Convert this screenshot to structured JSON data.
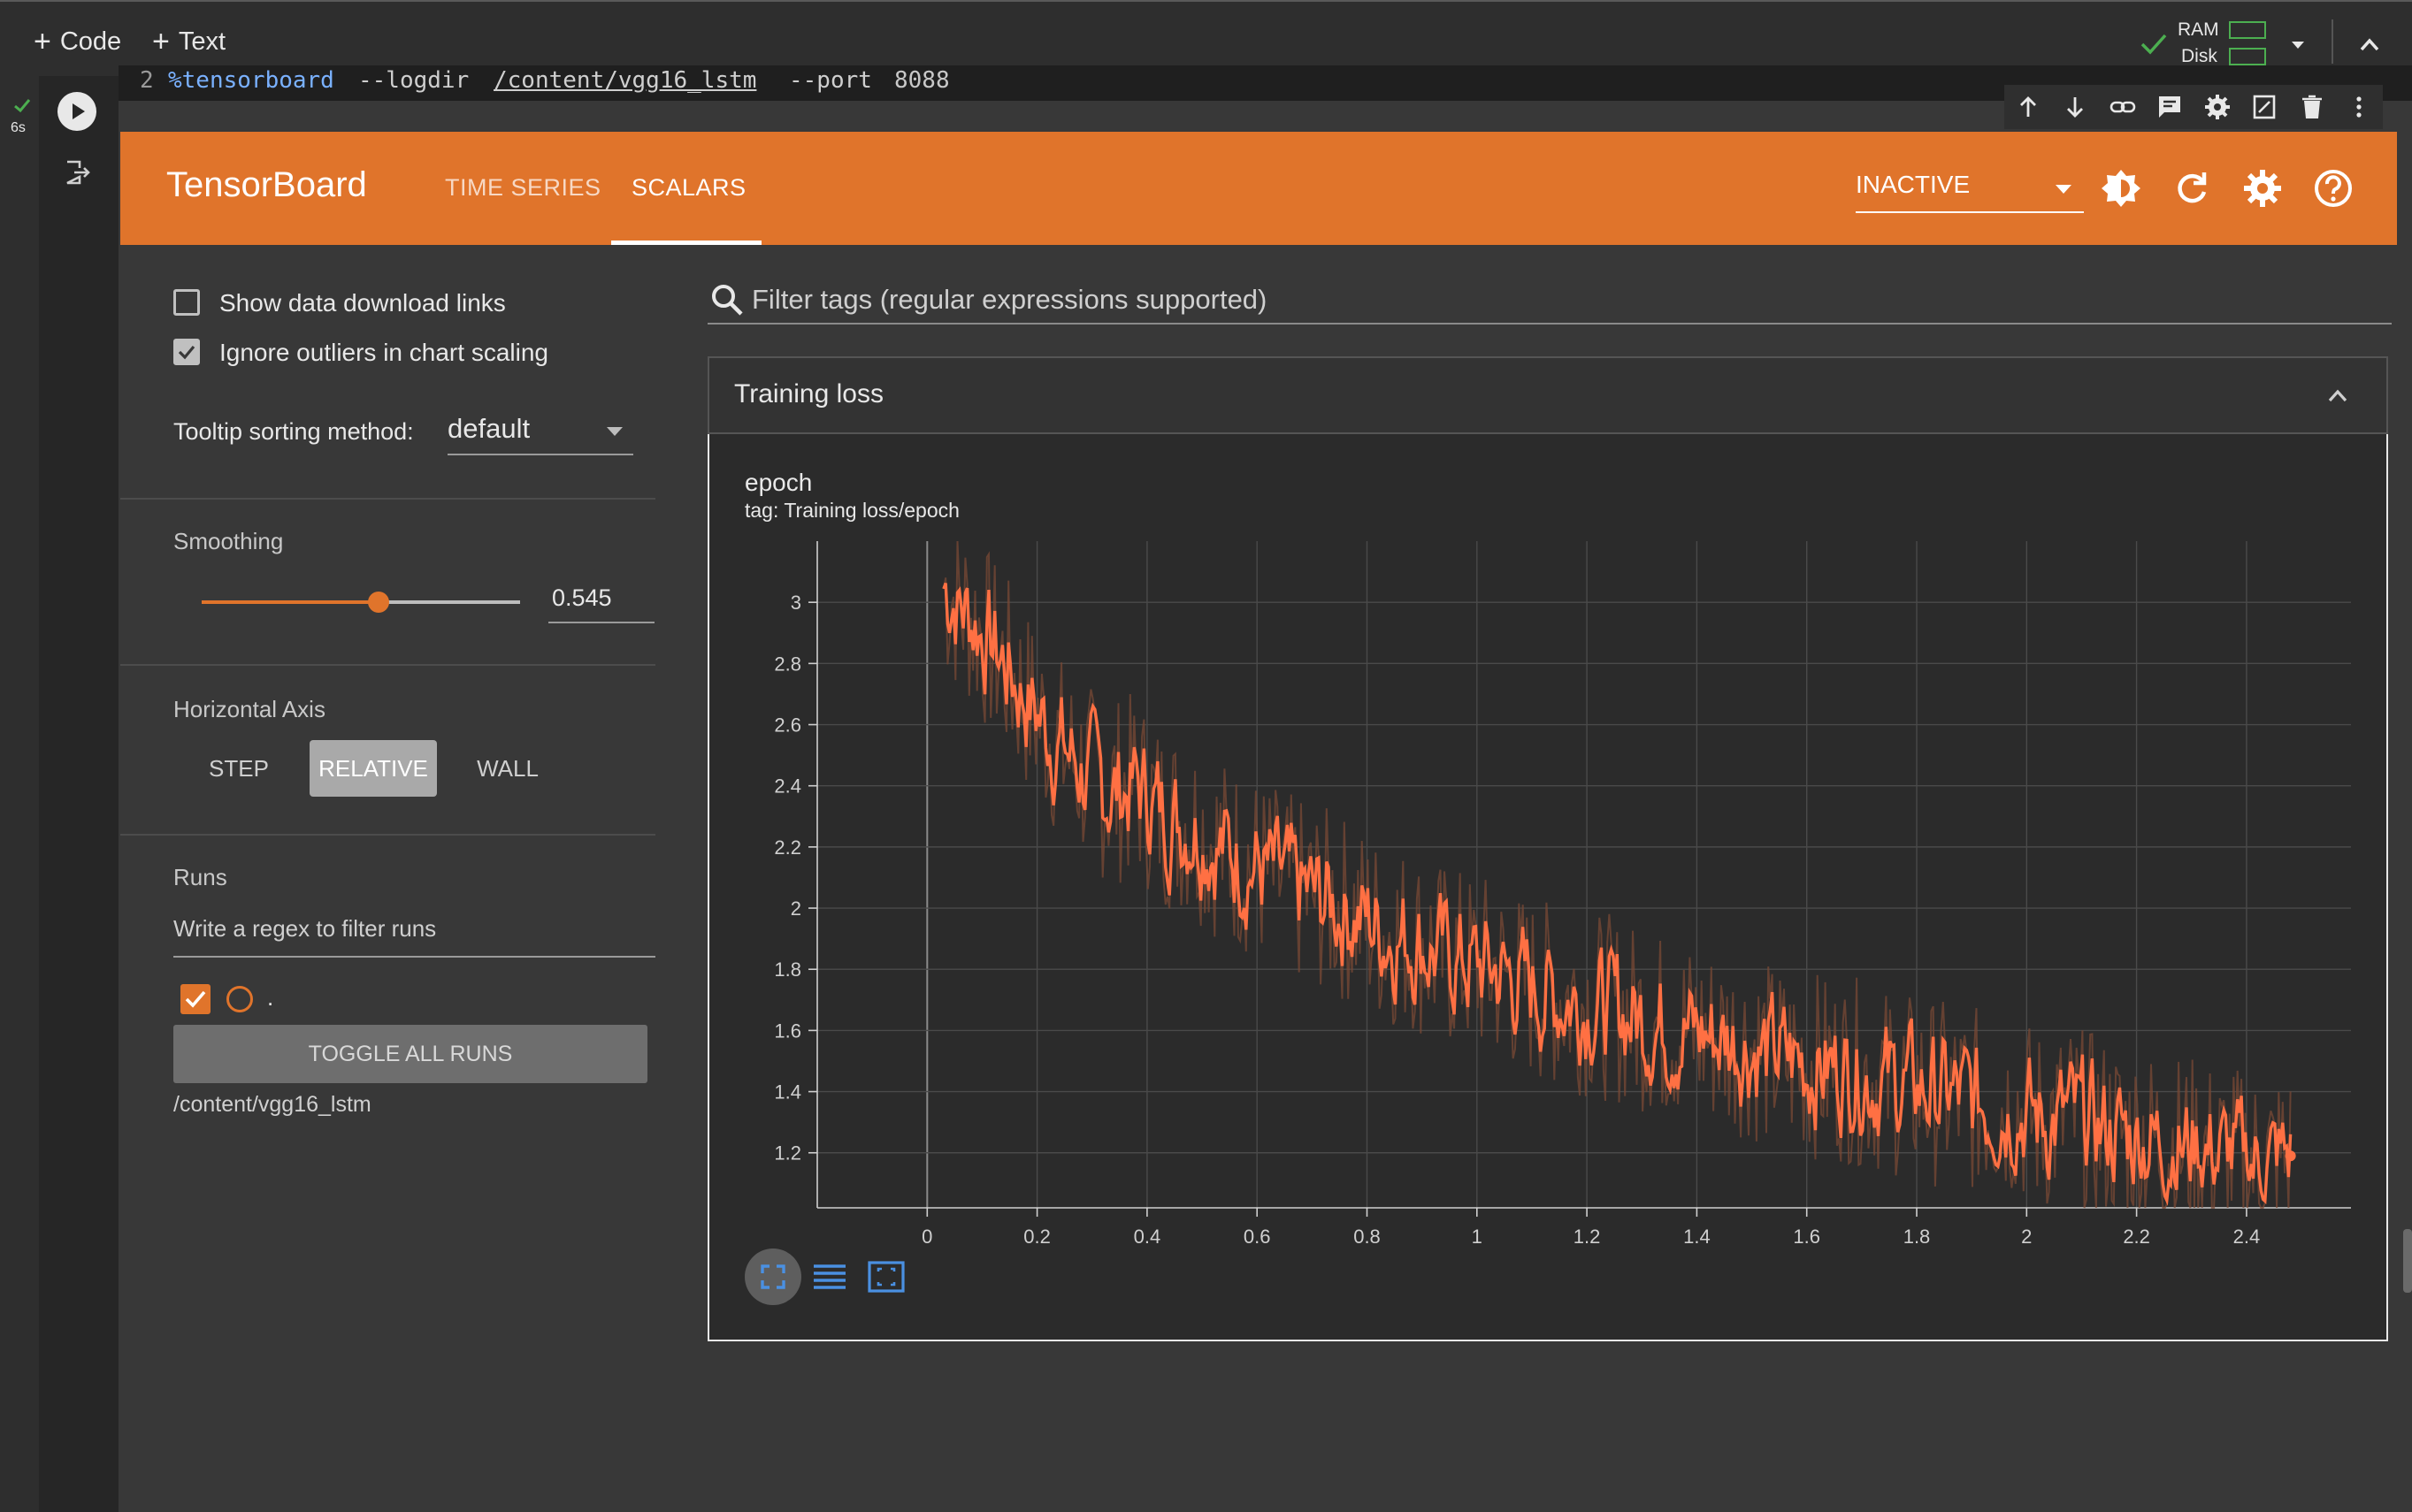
{
  "colab": {
    "add_code": "Code",
    "add_text": "Text",
    "ram_label": "RAM",
    "disk_label": "Disk",
    "exec_time": "6s",
    "code_line_number": "2",
    "code_magic": "%tensorboard",
    "code_arg1": "--logdir",
    "code_path": "/content/vgg16_lstm",
    "code_arg2": "--port",
    "code_port": "8088"
  },
  "tensorboard": {
    "title": "TensorBoard",
    "tabs": [
      {
        "label": "TIME SERIES",
        "active": false
      },
      {
        "label": "SCALARS",
        "active": true
      }
    ],
    "status_select": "INACTIVE",
    "accent_color": "#e0742b"
  },
  "sidebar": {
    "show_download_links": {
      "label": "Show data download links",
      "checked": false
    },
    "ignore_outliers": {
      "label": "Ignore outliers in chart scaling",
      "checked": true
    },
    "tooltip_label": "Tooltip sorting method:",
    "tooltip_value": "default",
    "smoothing_label": "Smoothing",
    "smoothing_value": "0.545",
    "smoothing_fraction": 0.545,
    "horizontal_axis_label": "Horizontal Axis",
    "axis_options": [
      {
        "label": "STEP",
        "selected": false
      },
      {
        "label": "RELATIVE",
        "selected": true
      },
      {
        "label": "WALL",
        "selected": false
      }
    ],
    "runs_label": "Runs",
    "runs_filter_placeholder": "Write a regex to filter runs",
    "run_name": ".",
    "toggle_all_runs": "TOGGLE ALL RUNS",
    "run_path": "/content/vgg16_lstm"
  },
  "main": {
    "filter_placeholder": "Filter tags (regular expressions supported)",
    "card_title": "Training loss",
    "chart_title": "epoch",
    "chart_tag": "tag: Training loss/epoch"
  },
  "chart_data": {
    "type": "line",
    "title": "epoch",
    "subtitle": "tag: Training loss/epoch",
    "xlabel": "",
    "ylabel": "",
    "xlim": [
      -0.2,
      2.59
    ],
    "ylim": [
      1.02,
      3.2
    ],
    "x_ticks": [
      "0",
      "0.2",
      "0.4",
      "0.6",
      "0.8",
      "1",
      "1.2",
      "1.4",
      "1.6",
      "1.8",
      "2",
      "2.2",
      "2.4"
    ],
    "y_ticks": [
      "1.2",
      "1.4",
      "1.6",
      "1.8",
      "2",
      "2.2",
      "2.4",
      "2.6",
      "2.8",
      "3"
    ],
    "grid": true,
    "series": [
      {
        "color": "#ff7043",
        "x": [
          0.03,
          0.08,
          0.13,
          0.18,
          0.23,
          0.28,
          0.33,
          0.38,
          0.43,
          0.48,
          0.53,
          0.58,
          0.63,
          0.68,
          0.73,
          0.78,
          0.83,
          0.88,
          0.93,
          0.98,
          1.03,
          1.08,
          1.13,
          1.18,
          1.23,
          1.28,
          1.33,
          1.38,
          1.43,
          1.48,
          1.53,
          1.58,
          1.63,
          1.68,
          1.73,
          1.78,
          1.83,
          1.88,
          1.93,
          1.98,
          2.03,
          2.08,
          2.13,
          2.18,
          2.23,
          2.28,
          2.33,
          2.38,
          2.43,
          2.48
        ],
        "y": [
          3.05,
          2.95,
          2.82,
          2.68,
          2.55,
          2.45,
          2.38,
          2.4,
          2.3,
          2.28,
          2.2,
          2.15,
          2.1,
          2.05,
          2.02,
          1.98,
          1.92,
          1.9,
          1.85,
          1.82,
          1.8,
          1.75,
          1.72,
          1.7,
          1.68,
          1.65,
          1.62,
          1.6,
          1.58,
          1.56,
          1.52,
          1.5,
          1.48,
          1.47,
          1.44,
          1.42,
          1.4,
          1.38,
          1.36,
          1.35,
          1.3,
          1.32,
          1.28,
          1.26,
          1.24,
          1.22,
          1.2,
          1.18,
          1.16,
          1.19
        ]
      }
    ]
  }
}
